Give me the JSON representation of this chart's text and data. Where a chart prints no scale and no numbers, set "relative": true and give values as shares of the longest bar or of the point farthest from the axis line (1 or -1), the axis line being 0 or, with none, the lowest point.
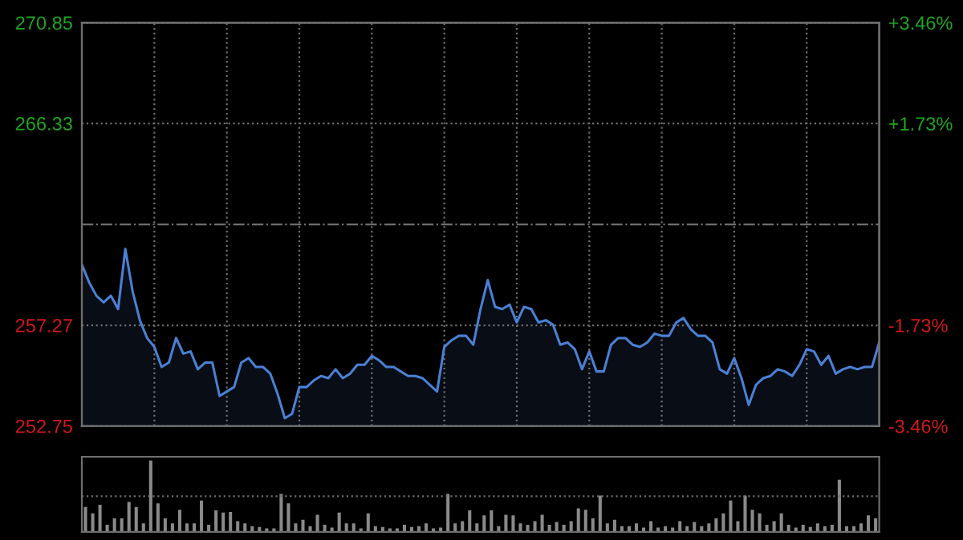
{
  "chart_data": [
    {
      "type": "area",
      "categories": [
        null,
        null,
        null,
        null,
        null,
        null,
        null,
        null,
        null,
        null,
        null,
        null,
        null,
        null,
        null,
        null,
        null,
        null,
        null,
        null,
        null,
        null,
        null,
        null,
        null,
        null,
        null,
        null,
        null,
        null,
        null,
        null,
        null,
        null,
        null,
        null,
        null,
        null,
        null,
        null,
        null,
        null,
        null,
        null,
        null,
        null,
        null,
        null,
        null,
        null,
        null,
        null,
        null,
        null,
        null,
        null,
        null,
        null,
        null,
        null,
        null,
        null,
        null,
        null,
        null,
        null,
        null,
        null,
        null,
        null,
        null,
        null,
        null,
        null,
        null,
        null,
        null,
        null,
        null,
        null,
        null,
        null,
        null,
        null,
        null,
        null,
        null,
        null,
        null,
        null,
        null,
        null,
        null,
        null,
        null,
        null,
        null,
        null,
        null,
        null,
        null,
        null,
        null,
        null,
        null,
        null,
        null,
        null,
        null,
        null,
        null
      ],
      "ylim": [
        252.75,
        270.85
      ],
      "yticks": [
        252.75,
        257.27,
        266.33,
        270.85
      ],
      "y2lim": [
        -3.46,
        3.46
      ],
      "y2ticks": [
        {
          "value": -3.46,
          "label": "-3.46%"
        },
        {
          "value": -1.73,
          "label": "-1.73%"
        },
        {
          "value": 1.73,
          "label": "+1.73%"
        },
        {
          "value": 3.46,
          "label": "+3.46%"
        }
      ],
      "grid": true,
      "legend": false,
      "ref_lines": [
        {
          "axis": "y",
          "value": 261.8,
          "label": null,
          "color": "#6e6e6e",
          "line_style": "dashdot"
        }
      ],
      "series": [
        {
          "color": "#4a80d4",
          "values": [
            260.0,
            259.2,
            258.6,
            258.3,
            258.6,
            258.0,
            260.7,
            258.8,
            257.5,
            256.7,
            256.3,
            255.4,
            255.6,
            256.7,
            256.0,
            256.1,
            255.3,
            255.6,
            255.6,
            254.1,
            254.3,
            254.5,
            255.6,
            255.8,
            255.4,
            255.4,
            255.1,
            254.2,
            253.1,
            253.3,
            254.5,
            254.5,
            254.8,
            255.0,
            254.9,
            255.3,
            254.9,
            255.1,
            255.5,
            255.5,
            255.9,
            255.7,
            255.4,
            255.4,
            255.2,
            255.0,
            255.0,
            254.9,
            254.6,
            254.3,
            256.3,
            256.6,
            256.8,
            256.8,
            256.4,
            258.0,
            259.3,
            258.1,
            258.0,
            258.2,
            257.4,
            258.1,
            258.0,
            257.4,
            257.5,
            257.3,
            256.4,
            256.5,
            256.2,
            255.3,
            256.1,
            255.2,
            255.2,
            256.4,
            256.7,
            256.7,
            256.4,
            256.3,
            256.5,
            256.9,
            256.8,
            256.8,
            257.4,
            257.6,
            257.1,
            256.8,
            256.8,
            256.5,
            255.3,
            255.1,
            255.8,
            254.9,
            253.7,
            254.6,
            254.9,
            255.0,
            255.3,
            255.2,
            255.0,
            255.5,
            256.2,
            256.1,
            255.5,
            255.9,
            255.1,
            255.3,
            255.4,
            255.3,
            255.4,
            255.4,
            256.5
          ]
        }
      ]
    },
    {
      "type": "bar",
      "relative": true,
      "legend": false,
      "categories": [
        null,
        null,
        null,
        null,
        null,
        null,
        null,
        null,
        null,
        null,
        null,
        null,
        null,
        null,
        null,
        null,
        null,
        null,
        null,
        null,
        null,
        null,
        null,
        null,
        null,
        null,
        null,
        null,
        null,
        null,
        null,
        null,
        null,
        null,
        null,
        null,
        null,
        null,
        null,
        null,
        null,
        null,
        null,
        null,
        null,
        null,
        null,
        null,
        null,
        null,
        null,
        null,
        null,
        null,
        null,
        null,
        null,
        null,
        null,
        null,
        null,
        null,
        null,
        null,
        null,
        null,
        null,
        null,
        null,
        null,
        null,
        null,
        null,
        null,
        null,
        null,
        null,
        null,
        null,
        null,
        null,
        null,
        null,
        null,
        null,
        null,
        null,
        null,
        null,
        null,
        null,
        null,
        null,
        null,
        null,
        null,
        null,
        null,
        null,
        null,
        null,
        null,
        null,
        null,
        null,
        null,
        null,
        null,
        null,
        null
      ],
      "ref_lines": [
        {
          "axis": "y",
          "value": 0.5,
          "label": null,
          "color": "#6e6e6e",
          "line_style": "dotted"
        }
      ],
      "series": [
        {
          "color": "#8a8a8a",
          "values": [
            0.35,
            0.26,
            0.38,
            0.1,
            0.19,
            0.19,
            0.42,
            0.35,
            0.12,
            1.0,
            0.4,
            0.19,
            0.12,
            0.31,
            0.12,
            0.12,
            0.44,
            0.1,
            0.3,
            0.27,
            0.28,
            0.15,
            0.12,
            0.08,
            0.07,
            0.05,
            0.05,
            0.53,
            0.4,
            0.12,
            0.17,
            0.08,
            0.24,
            0.1,
            0.06,
            0.27,
            0.12,
            0.12,
            0.05,
            0.26,
            0.08,
            0.07,
            0.05,
            0.05,
            0.1,
            0.07,
            0.08,
            0.12,
            0.05,
            0.06,
            0.53,
            0.12,
            0.15,
            0.3,
            0.12,
            0.23,
            0.3,
            0.08,
            0.24,
            0.23,
            0.12,
            0.1,
            0.15,
            0.24,
            0.1,
            0.14,
            0.1,
            0.15,
            0.33,
            0.31,
            0.19,
            0.51,
            0.12,
            0.17,
            0.08,
            0.08,
            0.12,
            0.06,
            0.15,
            0.06,
            0.08,
            0.06,
            0.15,
            0.08,
            0.14,
            0.08,
            0.12,
            0.19,
            0.26,
            0.44,
            0.15,
            0.51,
            0.31,
            0.26,
            0.1,
            0.15,
            0.26,
            0.1,
            0.06,
            0.1,
            0.07,
            0.12,
            0.08,
            0.1,
            0.73,
            0.08,
            0.08,
            0.12,
            0.23,
            0.19
          ]
        }
      ]
    }
  ]
}
